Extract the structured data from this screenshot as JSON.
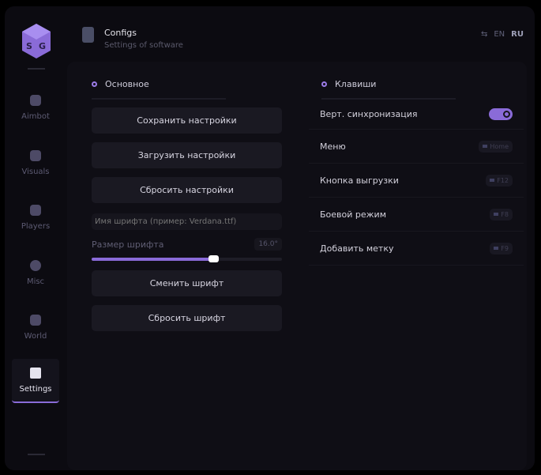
{
  "sidebar": {
    "items": [
      {
        "label": "Aimbot",
        "icon": "skull-icon"
      },
      {
        "label": "Visuals",
        "icon": "vr-goggles-icon"
      },
      {
        "label": "Players",
        "icon": "users-icon"
      },
      {
        "label": "Misc",
        "icon": "dots-circle-icon"
      },
      {
        "label": "World",
        "icon": "briefcase-icon"
      },
      {
        "label": "Settings",
        "icon": "list-icon",
        "active": true
      }
    ]
  },
  "header": {
    "title": "Configs",
    "subtitle": "Settings of software",
    "lang": {
      "en": "EN",
      "ru": "RU"
    }
  },
  "left": {
    "section": "Основное",
    "save": "Сохранить настройки",
    "load": "Загрузить настройки",
    "reset": "Сбросить настройки",
    "font_placeholder": "Имя шрифта (пример: Verdana.ttf)",
    "font_value": "",
    "size_label": "Размер шрифта",
    "size_value": "16.0°",
    "size_fraction": 0.64,
    "change_font": "Сменить шрифт",
    "reset_font": "Сбросить шрифт"
  },
  "right": {
    "section": "Клавиши",
    "rows": [
      {
        "label": "Верт. синхронизация",
        "toggle": true
      },
      {
        "label": "Меню",
        "key": "Home"
      },
      {
        "label": "Кнопка выгрузки",
        "key": "F12"
      },
      {
        "label": "Боевой режим",
        "key": "F8"
      },
      {
        "label": "Добавить метку",
        "key": "F9"
      }
    ]
  },
  "colors": {
    "accent": "#8a6bd8",
    "bg": "#0c0b11"
  }
}
